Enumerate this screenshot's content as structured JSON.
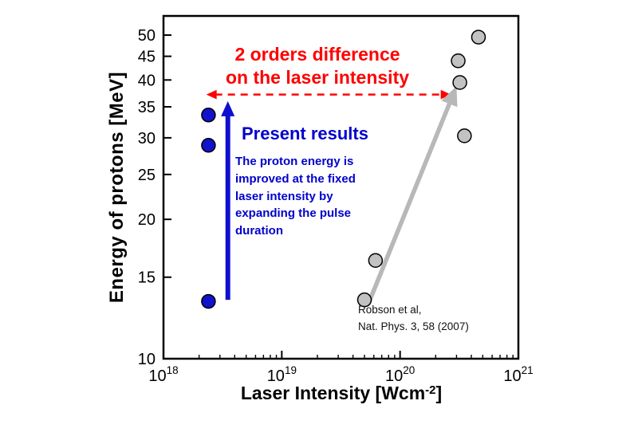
{
  "chart_data": {
    "type": "scatter",
    "xlabel": {
      "prefix": "Laser Intensity  [Wcm",
      "sup": "-2",
      "suffix": "]"
    },
    "ylabel": "Energy of protons [MeV]",
    "x_scale": "log",
    "y_scale": "log",
    "xlim": [
      1e+18,
      1e+21
    ],
    "ylim": [
      10,
      55
    ],
    "x_ticks": [
      {
        "base": "10",
        "exp": "18",
        "value": 1e+18
      },
      {
        "base": "10",
        "exp": "19",
        "value": 1e+19
      },
      {
        "base": "10",
        "exp": "20",
        "value": 1e+20
      },
      {
        "base": "10",
        "exp": "21",
        "value": 1e+21
      }
    ],
    "y_ticks": [
      10,
      15,
      20,
      25,
      30,
      35,
      40,
      45,
      50
    ],
    "grid": false,
    "legend": "none",
    "series": [
      {
        "name": "Present results",
        "color": "#1212cd",
        "edge": "#000000",
        "points": [
          [
            2.4e+18,
            33.6
          ],
          [
            2.4e+18,
            28.9
          ],
          [
            2.4e+18,
            13.3
          ]
        ]
      },
      {
        "name": "Robson et al, Nat. Phys. 3, 58 (2007)",
        "color": "#c2c2c2",
        "edge": "#000000",
        "points": [
          [
            5e+19,
            13.4
          ],
          [
            6.2e+19,
            16.3
          ],
          [
            3.5e+20,
            30.3
          ],
          [
            3.2e+20,
            39.5
          ],
          [
            3.1e+20,
            44
          ],
          [
            4.6e+20,
            49.5
          ]
        ]
      }
    ],
    "arrows": [
      {
        "name": "two-orders-arrow",
        "color": "#ff0000",
        "width": 2.5,
        "head": 13,
        "from": [
          2.3e+18,
          37.2
        ],
        "to": [
          2.7e+20,
          37.2
        ],
        "dashed": true,
        "double": true
      },
      {
        "name": "robson-trend-arrow",
        "color": "#b8b8b8",
        "width": 5.5,
        "head": 24,
        "from": [
          5.5e+19,
          13.3
        ],
        "to": [
          3e+20,
          38.8
        ],
        "dashed": false,
        "double": false
      },
      {
        "name": "present-results-arrow",
        "color": "#0f0fd0",
        "width": 6,
        "head": 19,
        "from": [
          3.5e+18,
          13.4
        ],
        "to": [
          3.5e+18,
          36
        ],
        "dashed": false,
        "double": false
      }
    ],
    "annotations": {
      "two_orders": "2 orders difference\non the laser intensity",
      "present_results_title": "Present results",
      "present_results_body": "The proton energy is\nimproved at the fixed\nlaser intensity by\nexpanding the pulse\nduration",
      "reference": "Robson et al,\nNat. Phys. 3, 58 (2007)"
    },
    "colors": {
      "red": "#ff0000",
      "blue": "#0000cd",
      "text": "#111111",
      "frame": "#000000"
    }
  }
}
